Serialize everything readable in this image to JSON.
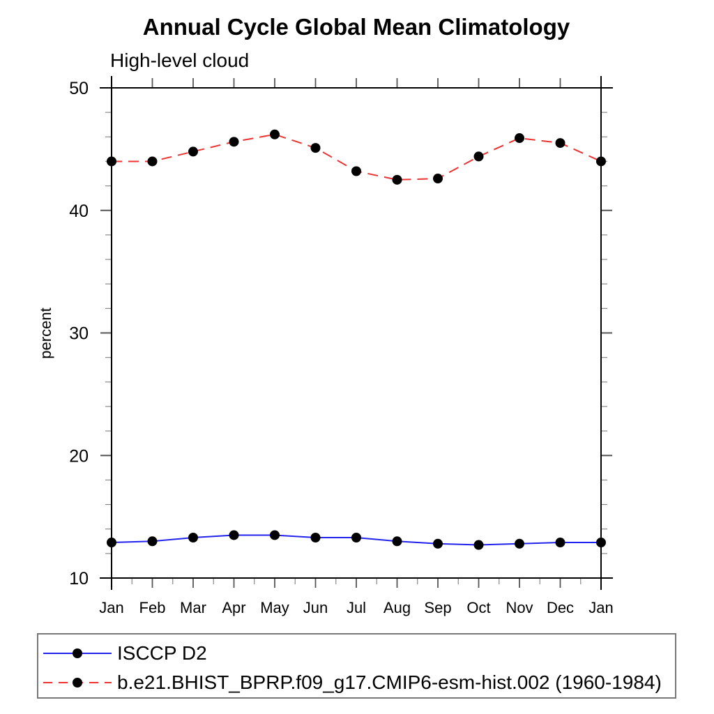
{
  "chart_data": {
    "type": "line",
    "title": "Annual Cycle Global Mean Climatology",
    "subtitle": "High-level cloud",
    "ylabel": "percent",
    "categories": [
      "Jan",
      "Feb",
      "Mar",
      "Apr",
      "May",
      "Jun",
      "Jul",
      "Aug",
      "Sep",
      "Oct",
      "Nov",
      "Dec",
      "Jan"
    ],
    "ylim": [
      10,
      50
    ],
    "y_major_ticks": [
      10,
      20,
      30,
      40,
      50
    ],
    "y_minor_step": 2,
    "grid": false,
    "legend_position": "bottom-left-box",
    "axis_color": "#000000",
    "series": [
      {
        "name": "ISCCP D2",
        "color": "#2222ee",
        "line_style": "solid",
        "marker": "filled-circle",
        "marker_color": "#000000",
        "values": [
          12.9,
          13.0,
          13.3,
          13.5,
          13.5,
          13.3,
          13.3,
          13.0,
          12.8,
          12.7,
          12.8,
          12.9,
          12.9
        ]
      },
      {
        "name": "b.e21.BHIST_BPRP.f09_g17.CMIP6-esm-hist.002 (1960-1984)",
        "color": "#ee3333",
        "line_style": "dashed",
        "marker": "filled-circle",
        "marker_color": "#000000",
        "values": [
          44.0,
          44.0,
          44.8,
          45.6,
          46.2,
          45.1,
          43.2,
          42.5,
          42.6,
          44.4,
          45.9,
          45.5,
          44.0
        ]
      }
    ]
  }
}
